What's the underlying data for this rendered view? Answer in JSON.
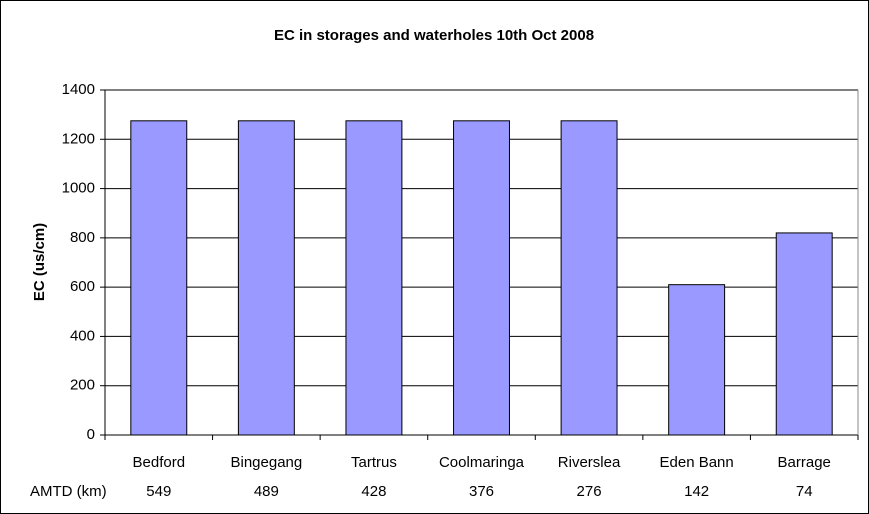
{
  "chart_data": {
    "type": "bar",
    "title": "EC in storages and waterholes 10th Oct 2008",
    "y_label": "EC (us/cm)",
    "categories": [
      "Bedford",
      "Bingegang",
      "Tartrus",
      "Coolmaringa",
      "Riverslea",
      "Eden Bann",
      "Barrage"
    ],
    "values": [
      1275,
      1275,
      1275,
      1275,
      1275,
      610,
      820
    ],
    "color": "#9999ff",
    "amtd": {
      "label": "AMTD (km)",
      "values": [
        549,
        489,
        428,
        376,
        276,
        142,
        74
      ]
    },
    "ylim": [
      0,
      1400
    ],
    "yticks": [
      0,
      200,
      400,
      600,
      800,
      1000,
      1200,
      1400
    ],
    "grid": true
  }
}
